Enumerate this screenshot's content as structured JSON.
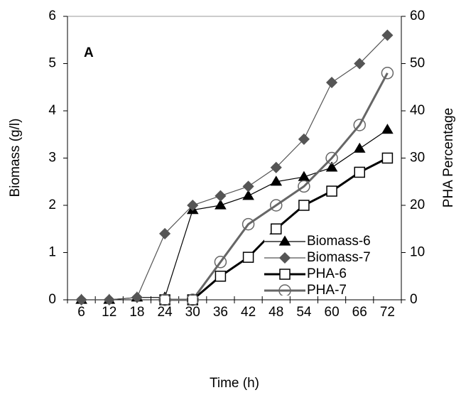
{
  "chart_data": {
    "type": "line",
    "annotation": "A",
    "x_label": "Time (h)",
    "y_label": "Biomass (g/l)",
    "y2_label": "PHA Percentage",
    "categories": [
      "6",
      "12",
      "18",
      "24",
      "30",
      "36",
      "42",
      "48",
      "54",
      "60",
      "66",
      "72"
    ],
    "ylim": [
      0,
      6
    ],
    "yticks": [
      0,
      1,
      2,
      3,
      4,
      5,
      6
    ],
    "y2lim": [
      0,
      60
    ],
    "y2ticks": [
      0,
      10,
      20,
      30,
      40,
      50,
      60
    ],
    "legend": "lower right",
    "series": [
      {
        "name": "Biomass-6",
        "color": "#000000",
        "marker": "triangle",
        "line_width": 1.2,
        "values": [
          0,
          0,
          0.05,
          0.05,
          1.9,
          2.0,
          2.2,
          2.5,
          2.6,
          2.8,
          3.2,
          3.6
        ]
      },
      {
        "name": "Biomass-7",
        "color": "#555555",
        "marker": "diamond",
        "line_width": 1.2,
        "values": [
          0,
          0,
          0.05,
          1.4,
          2.0,
          2.2,
          2.4,
          2.8,
          3.4,
          4.6,
          5.0,
          5.6
        ]
      },
      {
        "name": "PHA-6",
        "color": "#000000",
        "marker": "square",
        "line_width": 3,
        "axis": "y2",
        "values": [
          null,
          null,
          null,
          0,
          0,
          5,
          9,
          15,
          20,
          23,
          27,
          30
        ]
      },
      {
        "name": "PHA-7",
        "color": "#666666",
        "marker": "circle",
        "line_width": 3,
        "axis": "y2",
        "values": [
          null,
          null,
          null,
          0,
          0,
          8,
          16,
          20,
          24,
          30,
          37,
          48
        ]
      }
    ]
  }
}
